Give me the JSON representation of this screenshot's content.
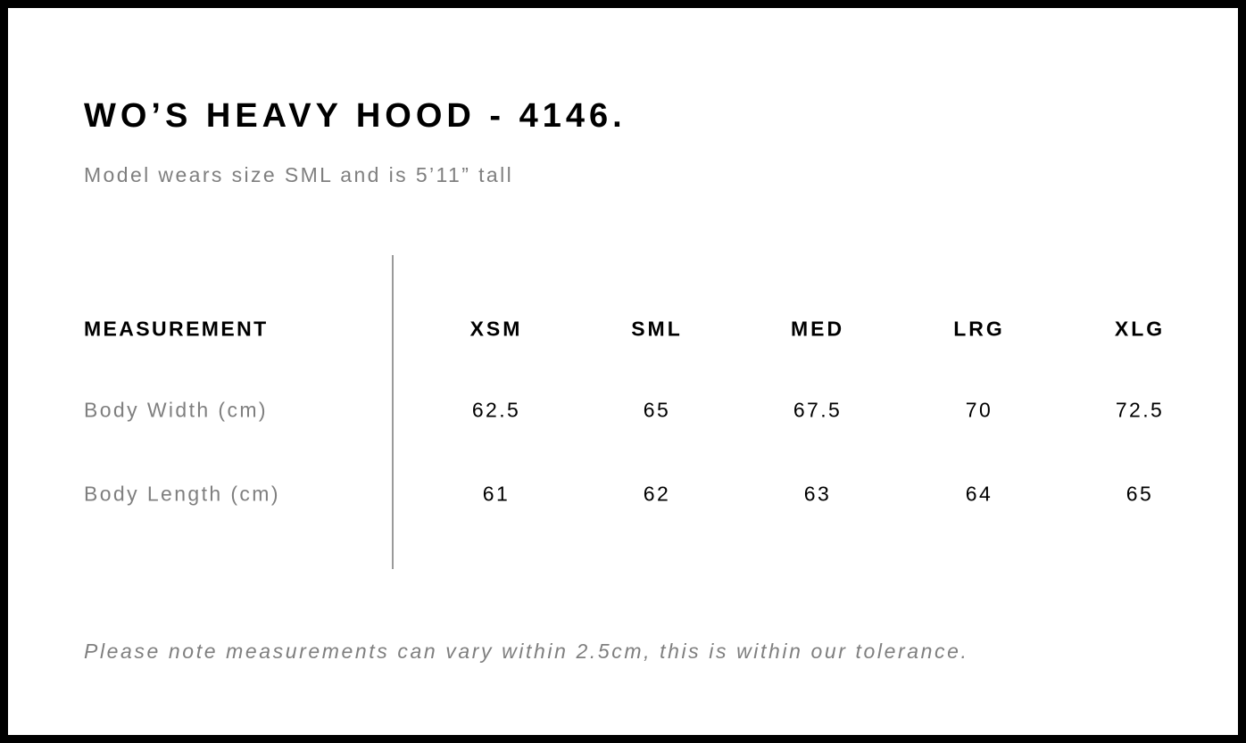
{
  "title": "WO’S HEAVY HOOD - 4146.",
  "subtitle": "Model wears size SML and is 5’11” tall",
  "table": {
    "header_label": "MEASUREMENT",
    "sizes": [
      "XSM",
      "SML",
      "MED",
      "LRG",
      "XLG"
    ],
    "rows": [
      {
        "label": "Body Width (cm)",
        "values": [
          "62.5",
          "65",
          "67.5",
          "70",
          "72.5"
        ]
      },
      {
        "label": "Body Length (cm)",
        "values": [
          "61",
          "62",
          "63",
          "64",
          "65"
        ]
      }
    ]
  },
  "note": "Please note measurements can vary within 2.5cm, this is within our tolerance.",
  "colors": {
    "border": "#000000",
    "text": "#000000",
    "muted": "#7f7f7f",
    "divider": "#9a9a9a"
  }
}
